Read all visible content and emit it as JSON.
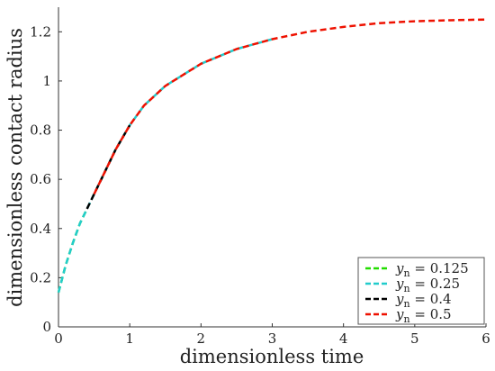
{
  "chart_data": {
    "type": "line",
    "xlabel": "dimensionless time",
    "ylabel": "dimensionless contact radius",
    "xlim": [
      0,
      6
    ],
    "ylim": [
      0,
      1.3
    ],
    "x_ticks": [
      "0",
      "1",
      "2",
      "3",
      "4",
      "5",
      "6"
    ],
    "y_ticks": [
      "0",
      "0.2",
      "0.4",
      "0.6",
      "0.8",
      "1",
      "1.2"
    ],
    "grid": false,
    "legend_position": "bottom-right",
    "legend_symbol": "y",
    "legend_subscript": "n",
    "series": [
      {
        "name": "0.125",
        "color": "#22dd00",
        "x": [
          0,
          0.1,
          0.2,
          0.3,
          0.4
        ],
        "y": [
          0.14,
          0.25,
          0.34,
          0.42,
          0.48
        ]
      },
      {
        "name": "0.25",
        "color": "#22cccc",
        "x": [
          0,
          0.1,
          0.2,
          0.3,
          0.4,
          0.5,
          0.6,
          0.8,
          1.0,
          1.2,
          1.5,
          2.0,
          2.5,
          3.0
        ],
        "y": [
          0.14,
          0.25,
          0.34,
          0.42,
          0.48,
          0.54,
          0.6,
          0.72,
          0.82,
          0.9,
          0.98,
          1.07,
          1.13,
          1.17
        ]
      },
      {
        "name": "0.4",
        "color": "#000000",
        "x": [
          0.4,
          0.5,
          0.6,
          0.8,
          1.0
        ],
        "y": [
          0.48,
          0.54,
          0.6,
          0.72,
          0.82
        ]
      },
      {
        "name": "0.5",
        "color": "#ee1100",
        "x": [
          0.5,
          0.6,
          0.8,
          1.0,
          1.2,
          1.5,
          2.0,
          2.5,
          3.0,
          3.5,
          4.0,
          4.5,
          5.0,
          5.5,
          6.0
        ],
        "y": [
          0.54,
          0.6,
          0.72,
          0.82,
          0.9,
          0.98,
          1.07,
          1.13,
          1.17,
          1.2,
          1.22,
          1.235,
          1.243,
          1.247,
          1.25
        ]
      }
    ]
  }
}
